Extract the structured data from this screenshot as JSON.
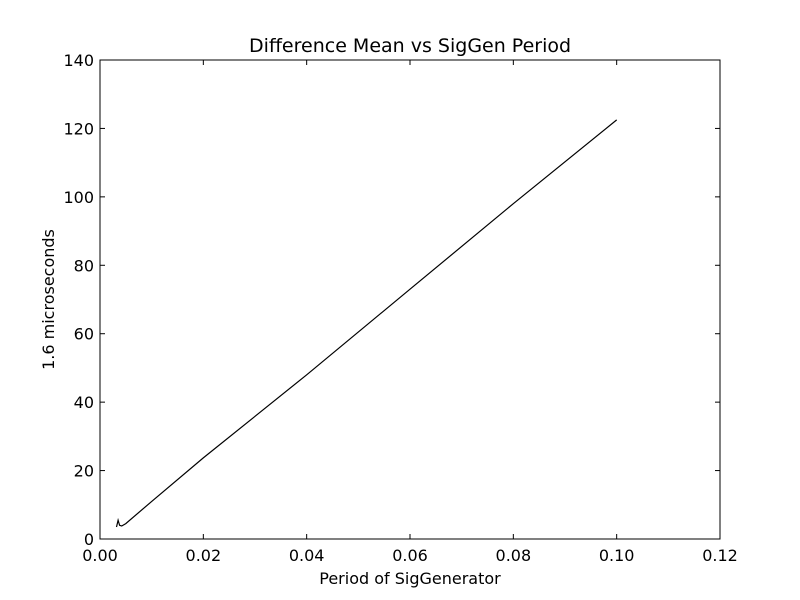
{
  "chart_data": {
    "type": "line",
    "title": "Difference Mean vs SigGen Period",
    "xlabel": "Period of SigGenerator",
    "ylabel": "1.6 microseconds",
    "xlim": [
      0.0,
      0.12
    ],
    "ylim": [
      0,
      140
    ],
    "xticks": [
      0.0,
      0.02,
      0.04,
      0.06,
      0.08,
      0.1,
      0.12
    ],
    "xtick_labels": [
      "0.00",
      "0.02",
      "0.04",
      "0.06",
      "0.08",
      "0.10",
      "0.12"
    ],
    "yticks": [
      0,
      20,
      40,
      60,
      80,
      100,
      120,
      140
    ],
    "ytick_labels": [
      "0",
      "20",
      "40",
      "60",
      "80",
      "100",
      "120",
      "140"
    ],
    "grid": false,
    "line_color": "#000000",
    "series": [
      {
        "x": [
          0.0032,
          0.0035,
          0.0038,
          0.0042,
          0.005,
          0.01,
          0.02,
          0.04,
          0.06,
          0.08,
          0.1
        ],
        "y": [
          3.5,
          5.5,
          4.0,
          3.8,
          4.5,
          11.0,
          23.7,
          48.0,
          73.0,
          98.0,
          122.5
        ]
      }
    ]
  }
}
